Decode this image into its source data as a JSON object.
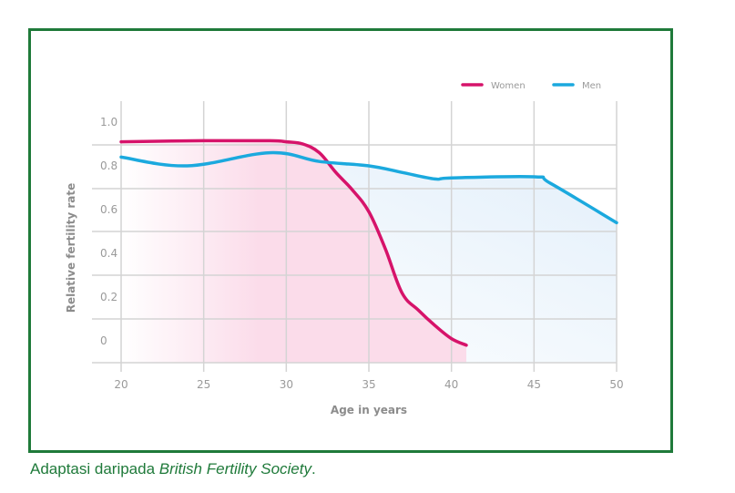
{
  "chart_data": {
    "type": "line",
    "title": "",
    "xlabel": "Age in years",
    "ylabel": "Relative fertility rate",
    "xlim": [
      20,
      50
    ],
    "ylim": [
      0,
      1.0
    ],
    "x_ticks": [
      "20",
      "25",
      "30",
      "35",
      "40",
      "45",
      "50"
    ],
    "y_ticks": [
      "1.0",
      "0.8",
      "0.6",
      "0.4",
      "0.2",
      "0"
    ],
    "grid": true,
    "legend_position": "top-right",
    "series": [
      {
        "name": "Women",
        "color": "#d6136a",
        "fill_color": "#fbd9e8",
        "x": [
          20,
          25,
          29,
          30,
          31,
          32,
          33,
          34,
          35,
          36,
          37,
          38,
          39,
          40,
          40.9
        ],
        "y": [
          0.91,
          0.915,
          0.915,
          0.91,
          0.9,
          0.86,
          0.77,
          0.69,
          0.59,
          0.42,
          0.22,
          0.14,
          0.07,
          0.01,
          -0.02
        ]
      },
      {
        "name": "Men",
        "color": "#1ba9de",
        "fill_color": "#e6f2fb",
        "x": [
          20,
          24,
          29,
          32,
          35,
          37,
          39,
          40,
          45,
          46,
          50
        ],
        "y": [
          0.84,
          0.8,
          0.86,
          0.82,
          0.8,
          0.77,
          0.74,
          0.745,
          0.75,
          0.72,
          0.54
        ]
      }
    ]
  },
  "caption": {
    "prefix": "Adaptasi daripada ",
    "source": "British Fertility Society",
    "suffix": "."
  }
}
